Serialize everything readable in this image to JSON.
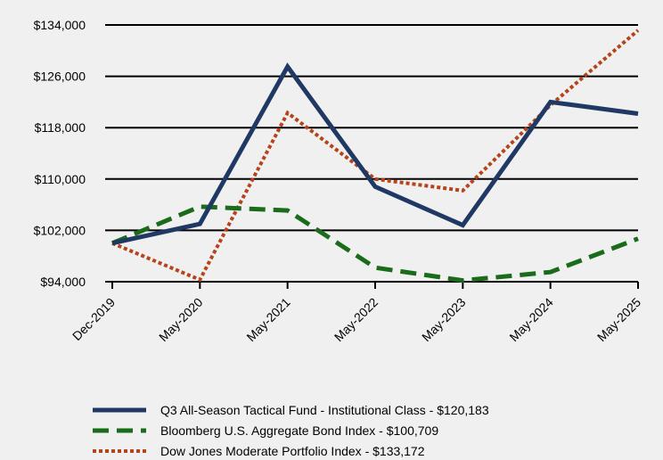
{
  "chart_data": {
    "type": "line",
    "title": "",
    "xlabel": "",
    "ylabel": "",
    "categories": [
      "Dec-2019",
      "May-2020",
      "May-2021",
      "May-2022",
      "May-2023",
      "May-2024",
      "May-2025"
    ],
    "yticks": [
      "$94,000",
      "$102,000",
      "$110,000",
      "$118,000",
      "$126,000",
      "$134,000"
    ],
    "ylim": [
      94000,
      134000
    ],
    "grid": "horizontal",
    "legend_position": "bottom",
    "series": [
      {
        "name": "Q3 All-Season Tactical Fund - Institutional Class - $120,183",
        "color": "#1f3864",
        "style": "solid",
        "values": [
          100000,
          103000,
          127500,
          108800,
          102800,
          122000,
          120183
        ]
      },
      {
        "name": "Bloomberg U.S. Aggregate Bond Index - $100,709",
        "color": "#1a6b1a",
        "style": "dashed",
        "values": [
          100000,
          105700,
          105100,
          96200,
          94200,
          95500,
          100709
        ]
      },
      {
        "name": "Dow Jones Moderate Portfolio Index - $133,172",
        "color": "#b5441a",
        "style": "dotted",
        "values": [
          100000,
          94300,
          120300,
          110000,
          108200,
          121500,
          133172
        ]
      }
    ]
  }
}
